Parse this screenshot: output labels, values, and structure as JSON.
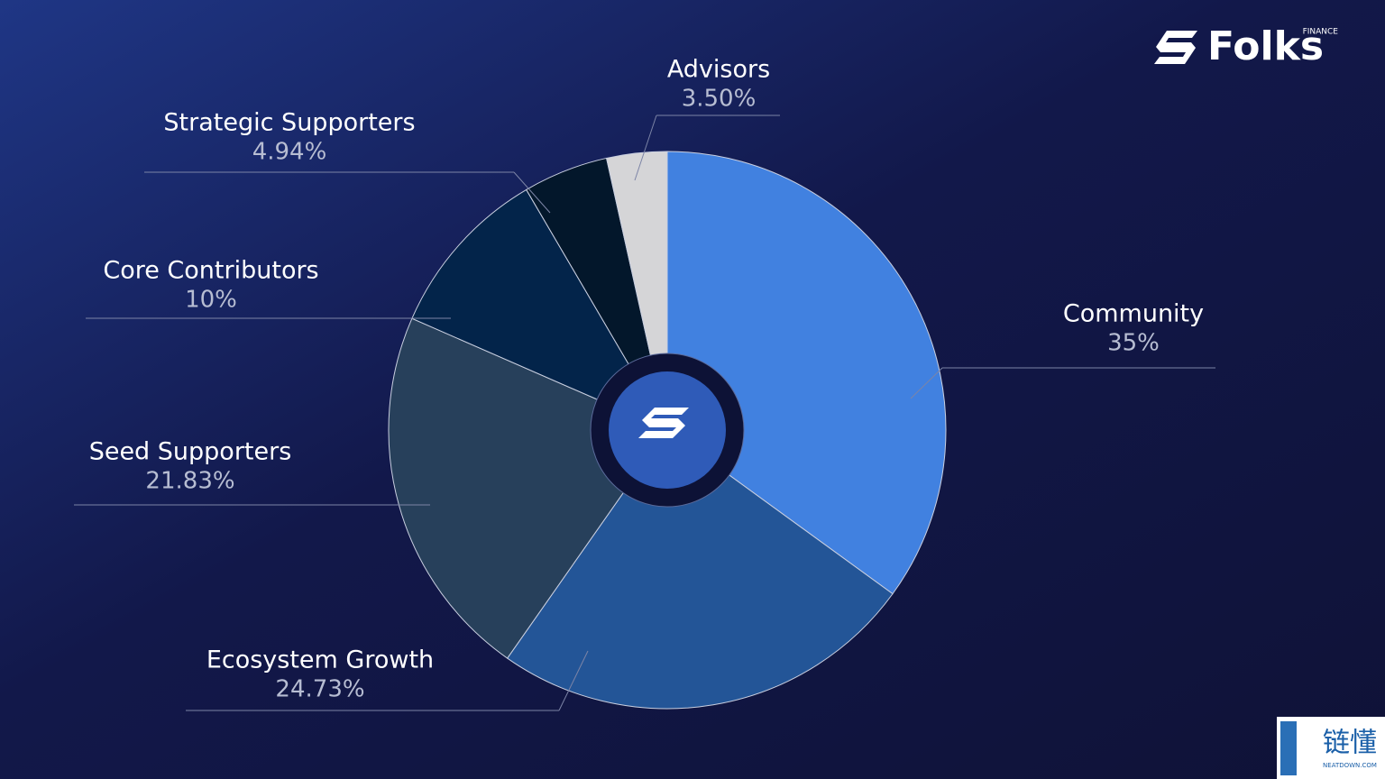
{
  "chart_data": {
    "type": "pie",
    "categories": [
      "Community",
      "Ecosystem Growth",
      "Seed Supporters",
      "Core Contributors",
      "Strategic Supporters",
      "Advisors"
    ],
    "values": [
      35,
      24.73,
      21.83,
      10,
      4.94,
      3.5
    ],
    "value_labels": [
      "35%",
      "24.73%",
      "21.83%",
      "10%",
      "4.94%",
      "3.50%"
    ],
    "colors": [
      "#4181e0",
      "#235597",
      "#27405b",
      "#03244a",
      "#03172b",
      "#d5d5d7"
    ]
  },
  "logo": {
    "text": "Folks",
    "sub": "FINANCE"
  },
  "watermark": {
    "text": "链懂",
    "sub": "NEATDOWN.COM"
  }
}
